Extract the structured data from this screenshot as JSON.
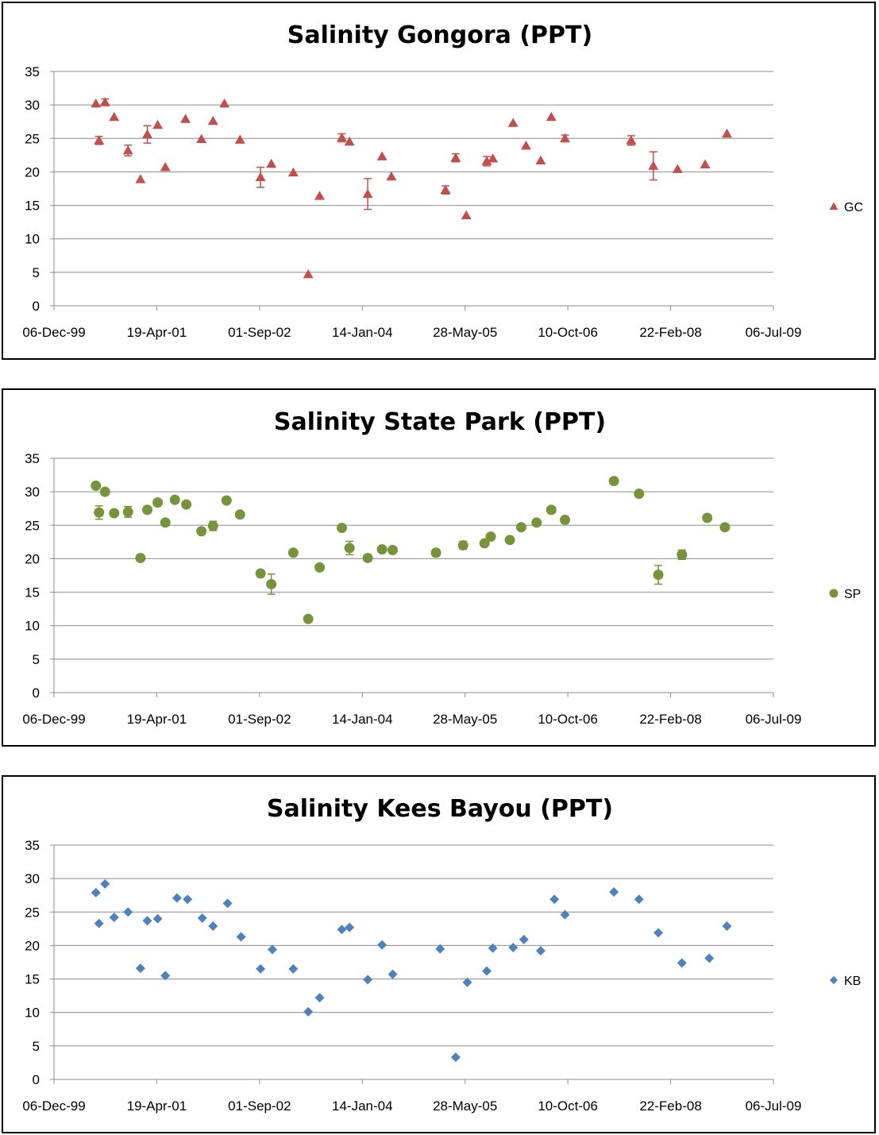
{
  "chart_data": [
    {
      "type": "scatter",
      "title": "Salinity Gongora (PPT)",
      "xlabel": "",
      "ylabel": "",
      "ylim": [
        0,
        35
      ],
      "yticks": [
        0,
        5,
        10,
        15,
        20,
        25,
        30,
        35
      ],
      "xlim": [
        "2000-01-06",
        "2009-07-06"
      ],
      "xticks": [
        "06-Dec-99",
        "19-Apr-01",
        "01-Sep-02",
        "14-Jan-04",
        "28-May-05",
        "10-Oct-06",
        "22-Feb-08",
        "06-Jul-09"
      ],
      "grid": "horizontal",
      "legend": "right",
      "marker": "triangle",
      "color": "#C0504D",
      "series": [
        {
          "name": "GC",
          "points": [
            {
              "x": "2000-07-26",
              "y": 30.2
            },
            {
              "x": "2000-08-10",
              "y": 24.7,
              "err": 0.6
            },
            {
              "x": "2000-09-08",
              "y": 30.4,
              "err": 0.5
            },
            {
              "x": "2000-10-22",
              "y": 28.2
            },
            {
              "x": "2000-12-28",
              "y": 23.2,
              "err": 0.8
            },
            {
              "x": "2001-02-26",
              "y": 18.9
            },
            {
              "x": "2001-03-31",
              "y": 25.6,
              "err": 1.3
            },
            {
              "x": "2001-05-20",
              "y": 27.0
            },
            {
              "x": "2001-06-26",
              "y": 20.7
            },
            {
              "x": "2001-10-01",
              "y": 27.9
            },
            {
              "x": "2001-12-17",
              "y": 24.9
            },
            {
              "x": "2002-02-11",
              "y": 27.6
            },
            {
              "x": "2002-04-07",
              "y": 30.2
            },
            {
              "x": "2002-06-21",
              "y": 24.8
            },
            {
              "x": "2002-09-28",
              "y": 19.2,
              "err": 1.5
            },
            {
              "x": "2002-11-19",
              "y": 21.2
            },
            {
              "x": "2003-03-05",
              "y": 19.9
            },
            {
              "x": "2003-05-16",
              "y": 4.7
            },
            {
              "x": "2003-07-10",
              "y": 16.4
            },
            {
              "x": "2003-10-25",
              "y": 25.1,
              "err": 0.6
            },
            {
              "x": "2003-12-01",
              "y": 24.5
            },
            {
              "x": "2004-02-27",
              "y": 16.7,
              "err": 2.3
            },
            {
              "x": "2004-05-06",
              "y": 22.3
            },
            {
              "x": "2004-06-20",
              "y": 19.3
            },
            {
              "x": "2005-03-08",
              "y": 17.3,
              "err": 0.6
            },
            {
              "x": "2005-04-26",
              "y": 22.1,
              "err": 0.6
            },
            {
              "x": "2005-06-16",
              "y": 13.5
            },
            {
              "x": "2005-09-23",
              "y": 21.6,
              "err": 0.7
            },
            {
              "x": "2005-10-22",
              "y": 22.0
            },
            {
              "x": "2006-01-28",
              "y": 27.3
            },
            {
              "x": "2006-03-31",
              "y": 23.9
            },
            {
              "x": "2006-06-10",
              "y": 21.7
            },
            {
              "x": "2006-07-31",
              "y": 28.2
            },
            {
              "x": "2006-10-05",
              "y": 25.0,
              "err": 0.5
            },
            {
              "x": "2007-08-20",
              "y": 24.7,
              "err": 0.7
            },
            {
              "x": "2007-12-05",
              "y": 20.9,
              "err": 2.1
            },
            {
              "x": "2008-03-31",
              "y": 20.4
            },
            {
              "x": "2008-08-11",
              "y": 21.1
            },
            {
              "x": "2008-11-24",
              "y": 25.7
            }
          ]
        }
      ]
    },
    {
      "type": "scatter",
      "title": "Salinity State Park (PPT)",
      "xlabel": "",
      "ylabel": "",
      "ylim": [
        0,
        35
      ],
      "yticks": [
        0,
        5,
        10,
        15,
        20,
        25,
        30,
        35
      ],
      "xlim": [
        "2000-01-06",
        "2009-07-06"
      ],
      "xticks": [
        "06-Dec-99",
        "19-Apr-01",
        "01-Sep-02",
        "14-Jan-04",
        "28-May-05",
        "10-Oct-06",
        "22-Feb-08",
        "06-Jul-09"
      ],
      "grid": "horizontal",
      "legend": "right",
      "marker": "circle",
      "color": "#77933C",
      "series": [
        {
          "name": "SP",
          "points": [
            {
              "x": "2000-07-26",
              "y": 30.9
            },
            {
              "x": "2000-08-10",
              "y": 26.9,
              "err": 1.0
            },
            {
              "x": "2000-09-08",
              "y": 30.0
            },
            {
              "x": "2000-10-22",
              "y": 26.8
            },
            {
              "x": "2000-12-28",
              "y": 27.0,
              "err": 0.8
            },
            {
              "x": "2001-02-26",
              "y": 20.1
            },
            {
              "x": "2001-03-31",
              "y": 27.3
            },
            {
              "x": "2001-05-20",
              "y": 28.4
            },
            {
              "x": "2001-06-26",
              "y": 25.4
            },
            {
              "x": "2001-08-11",
              "y": 28.8
            },
            {
              "x": "2001-10-05",
              "y": 28.1
            },
            {
              "x": "2001-12-17",
              "y": 24.1
            },
            {
              "x": "2002-02-11",
              "y": 24.9,
              "err": 0.7
            },
            {
              "x": "2002-04-17",
              "y": 28.7
            },
            {
              "x": "2002-06-21",
              "y": 26.6
            },
            {
              "x": "2002-09-28",
              "y": 17.8
            },
            {
              "x": "2002-11-19",
              "y": 16.2,
              "err": 1.5
            },
            {
              "x": "2003-03-05",
              "y": 20.9
            },
            {
              "x": "2003-05-16",
              "y": 11.0
            },
            {
              "x": "2003-07-10",
              "y": 18.7
            },
            {
              "x": "2003-10-25",
              "y": 24.6
            },
            {
              "x": "2003-12-01",
              "y": 21.6,
              "err": 1.0
            },
            {
              "x": "2004-02-27",
              "y": 20.1
            },
            {
              "x": "2004-05-06",
              "y": 21.4
            },
            {
              "x": "2004-06-26",
              "y": 21.3
            },
            {
              "x": "2005-01-21",
              "y": 20.9,
              "err": 0.5
            },
            {
              "x": "2005-06-01",
              "y": 22.0,
              "err": 0.6
            },
            {
              "x": "2005-09-12",
              "y": 22.3
            },
            {
              "x": "2005-10-12",
              "y": 23.3
            },
            {
              "x": "2006-01-12",
              "y": 22.8
            },
            {
              "x": "2006-03-08",
              "y": 24.7
            },
            {
              "x": "2006-05-21",
              "y": 25.4
            },
            {
              "x": "2006-07-31",
              "y": 27.3
            },
            {
              "x": "2006-10-05",
              "y": 25.8
            },
            {
              "x": "2007-05-29",
              "y": 31.6
            },
            {
              "x": "2007-09-27",
              "y": 29.7
            },
            {
              "x": "2007-12-29",
              "y": 17.6,
              "err": 1.4
            },
            {
              "x": "2008-04-21",
              "y": 20.6,
              "err": 0.7
            },
            {
              "x": "2008-08-21",
              "y": 26.1
            },
            {
              "x": "2008-11-14",
              "y": 24.7
            }
          ]
        }
      ]
    },
    {
      "type": "scatter",
      "title": "Salinity Kees Bayou (PPT)",
      "xlabel": "",
      "ylabel": "",
      "ylim": [
        0,
        35
      ],
      "yticks": [
        0,
        5,
        10,
        15,
        20,
        25,
        30,
        35
      ],
      "xlim": [
        "2000-01-06",
        "2009-07-06"
      ],
      "xticks": [
        "06-Dec-99",
        "19-Apr-01",
        "01-Sep-02",
        "14-Jan-04",
        "28-May-05",
        "10-Oct-06",
        "22-Feb-08",
        "06-Jul-09"
      ],
      "grid": "horizontal",
      "legend": "right",
      "marker": "diamond",
      "color": "#4F81BD",
      "series": [
        {
          "name": "KB",
          "points": [
            {
              "x": "2000-07-26",
              "y": 27.9
            },
            {
              "x": "2000-08-10",
              "y": 23.3
            },
            {
              "x": "2000-09-08",
              "y": 29.2
            },
            {
              "x": "2000-10-22",
              "y": 24.2
            },
            {
              "x": "2000-12-28",
              "y": 25.0
            },
            {
              "x": "2001-02-26",
              "y": 16.6
            },
            {
              "x": "2001-03-31",
              "y": 23.7
            },
            {
              "x": "2001-05-20",
              "y": 24.0
            },
            {
              "x": "2001-06-26",
              "y": 15.5
            },
            {
              "x": "2001-08-21",
              "y": 27.1
            },
            {
              "x": "2001-10-11",
              "y": 26.9
            },
            {
              "x": "2001-12-21",
              "y": 24.1
            },
            {
              "x": "2002-02-11",
              "y": 22.9
            },
            {
              "x": "2002-04-22",
              "y": 26.3
            },
            {
              "x": "2002-06-26",
              "y": 21.3
            },
            {
              "x": "2002-09-28",
              "y": 16.5
            },
            {
              "x": "2002-11-24",
              "y": 19.4
            },
            {
              "x": "2003-03-05",
              "y": 16.5
            },
            {
              "x": "2003-05-16",
              "y": 10.1
            },
            {
              "x": "2003-07-10",
              "y": 12.2
            },
            {
              "x": "2003-10-25",
              "y": 22.4
            },
            {
              "x": "2003-12-01",
              "y": 22.7
            },
            {
              "x": "2004-02-27",
              "y": 14.9
            },
            {
              "x": "2004-05-06",
              "y": 20.1
            },
            {
              "x": "2004-06-26",
              "y": 15.7
            },
            {
              "x": "2005-02-10",
              "y": 19.5
            },
            {
              "x": "2005-04-26",
              "y": 3.3
            },
            {
              "x": "2005-06-21",
              "y": 14.5
            },
            {
              "x": "2005-09-23",
              "y": 16.2
            },
            {
              "x": "2005-10-22",
              "y": 19.6
            },
            {
              "x": "2006-01-28",
              "y": 19.7
            },
            {
              "x": "2006-03-21",
              "y": 20.9
            },
            {
              "x": "2006-06-10",
              "y": 19.2
            },
            {
              "x": "2006-08-15",
              "y": 26.9
            },
            {
              "x": "2006-10-05",
              "y": 24.6
            },
            {
              "x": "2007-05-29",
              "y": 28.0
            },
            {
              "x": "2007-09-27",
              "y": 26.9
            },
            {
              "x": "2007-12-29",
              "y": 21.9
            },
            {
              "x": "2008-04-21",
              "y": 17.4
            },
            {
              "x": "2008-08-31",
              "y": 18.1
            },
            {
              "x": "2008-11-24",
              "y": 22.9
            }
          ]
        }
      ]
    }
  ]
}
